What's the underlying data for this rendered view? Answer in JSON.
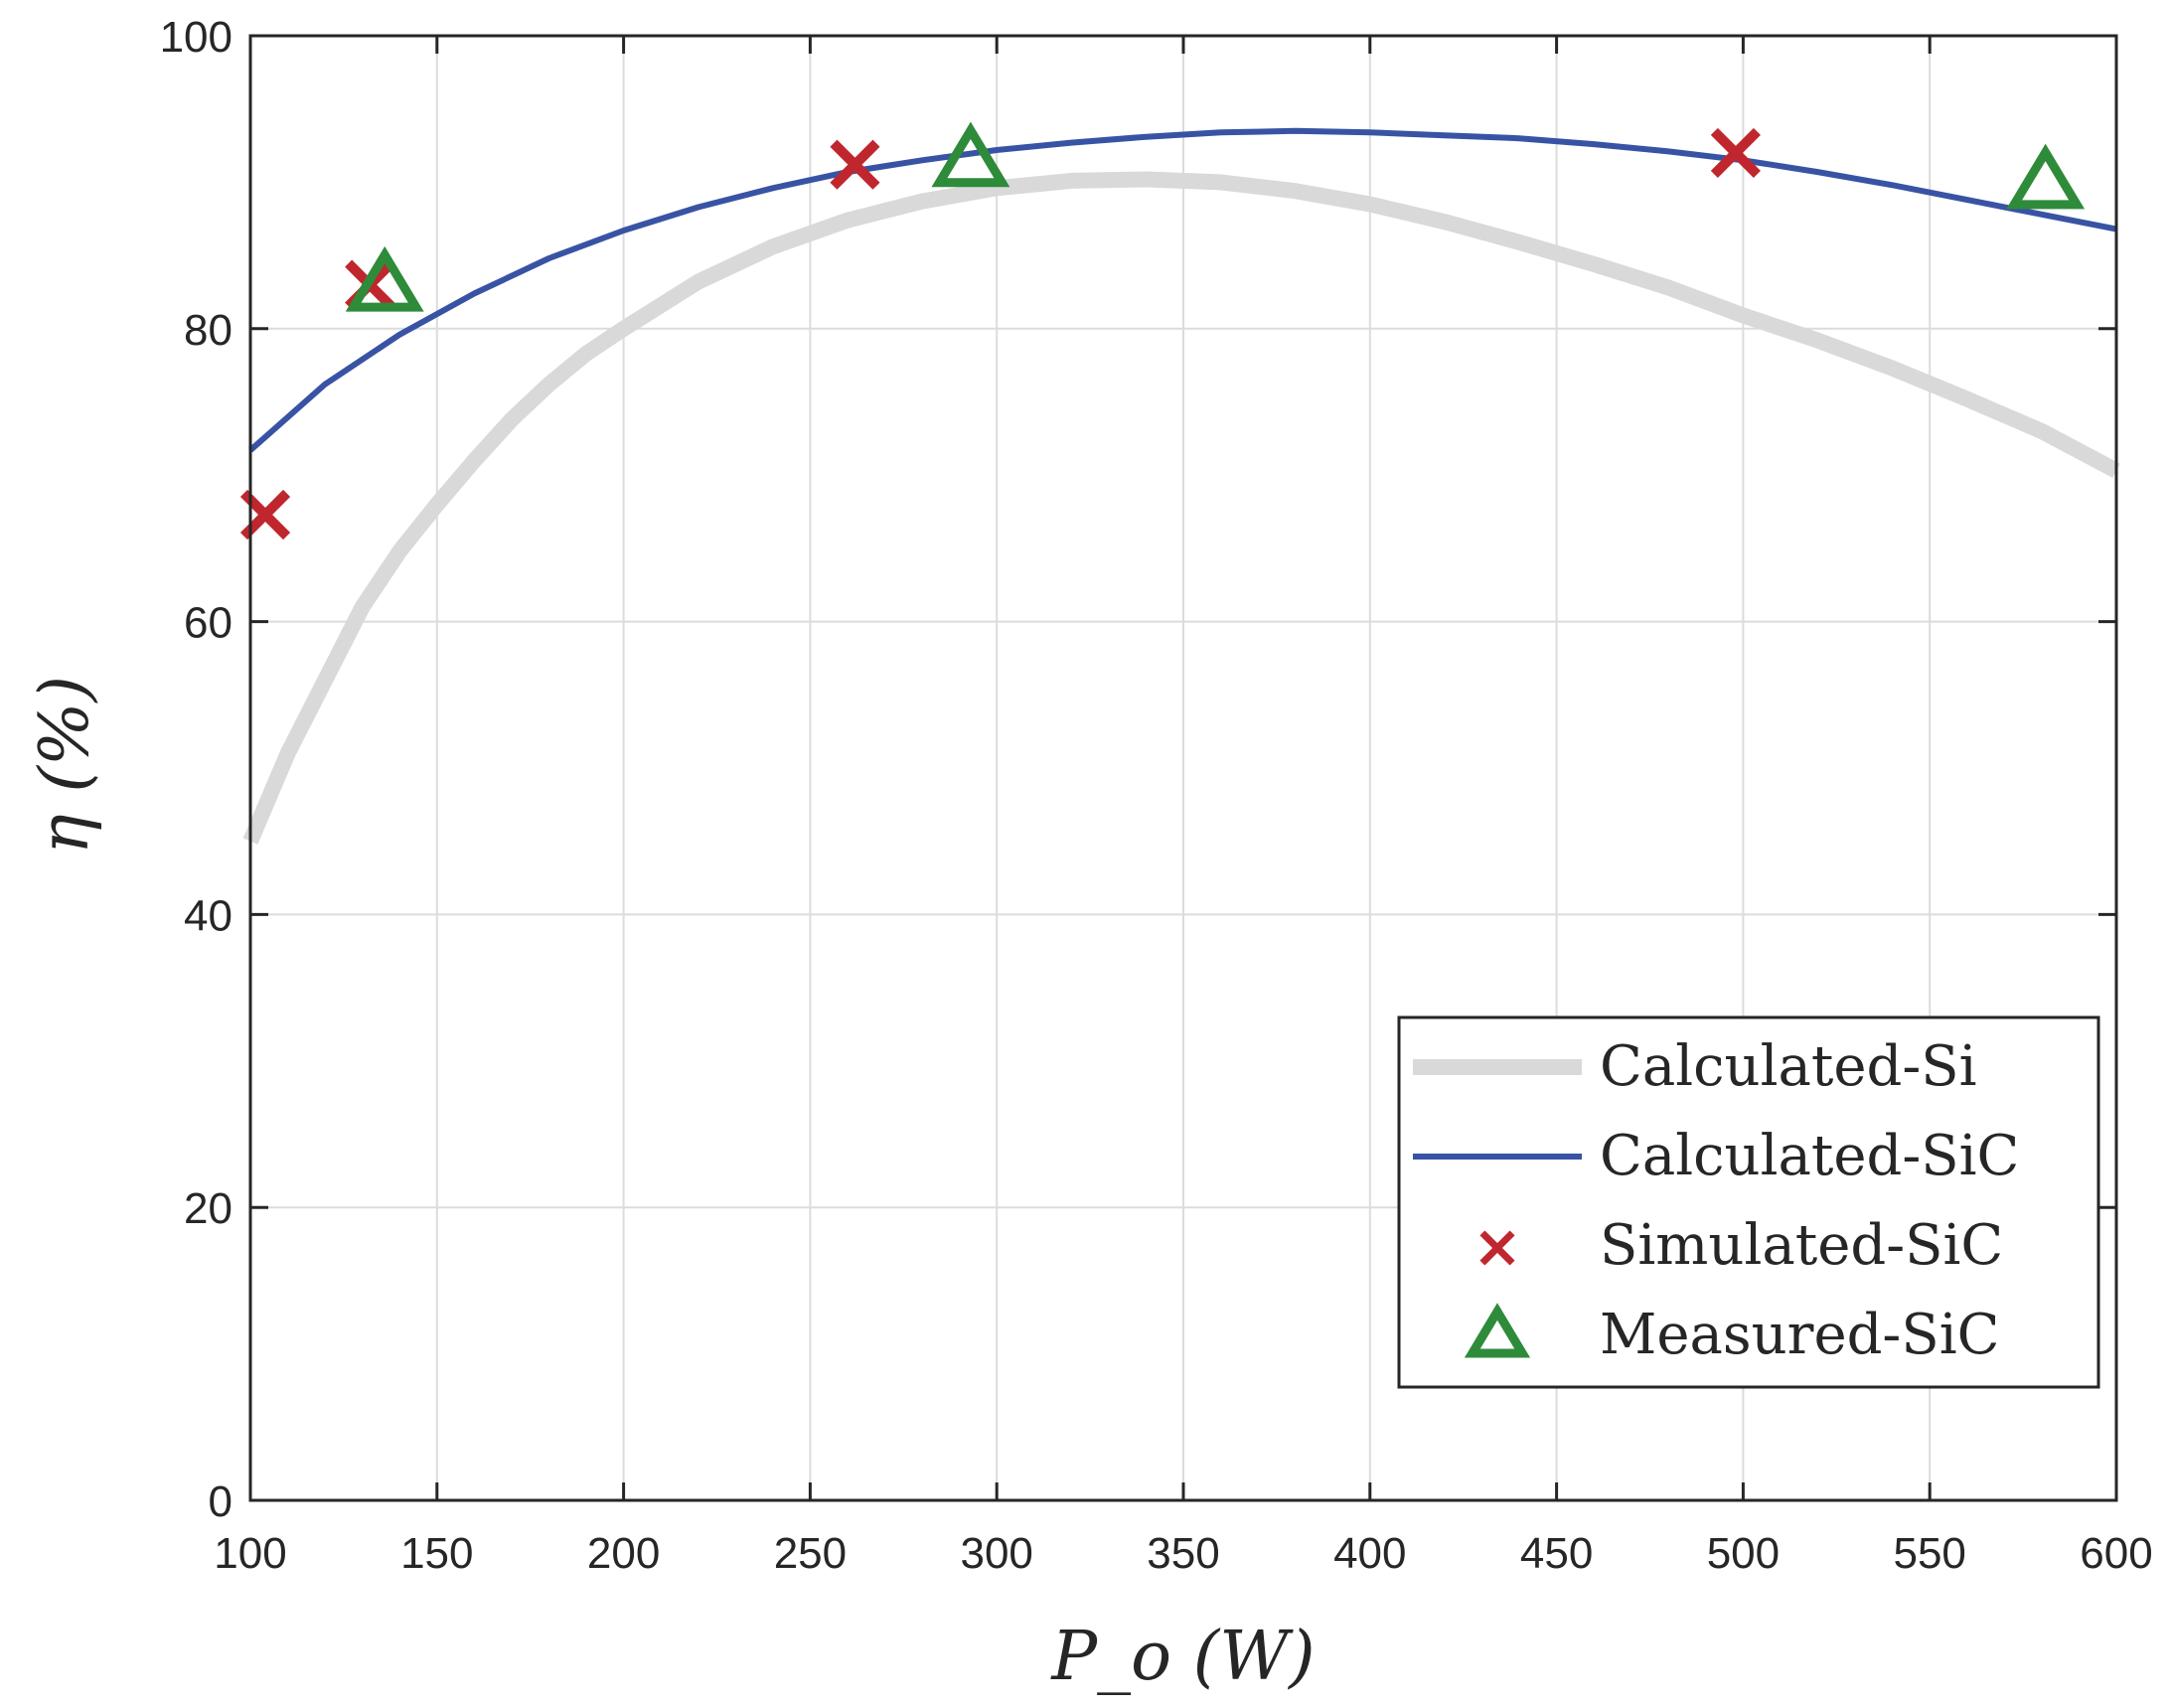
{
  "chart_data": {
    "type": "line",
    "title": "",
    "xlabel": "P_o (W)",
    "ylabel": "η (%)",
    "xlim": [
      100,
      600
    ],
    "ylim": [
      0,
      100
    ],
    "xticks": [
      "100",
      "150",
      "200",
      "250",
      "300",
      "350",
      "400",
      "450",
      "500",
      "550",
      "600"
    ],
    "yticks": [
      "0",
      "20",
      "40",
      "60",
      "80",
      "100"
    ],
    "grid": true,
    "legend_position": "bottom-right",
    "series": [
      {
        "name": "Calculated-Si",
        "kind": "line",
        "color": "#d9d9d9",
        "x": [
          100,
          110,
          120,
          130,
          140,
          150,
          160,
          170,
          180,
          190,
          200,
          220,
          240,
          260,
          280,
          300,
          320,
          340,
          360,
          380,
          400,
          420,
          440,
          460,
          480,
          500,
          520,
          540,
          560,
          580,
          600
        ],
        "y": [
          45,
          51,
          56,
          61,
          64.8,
          68,
          71,
          73.8,
          76.2,
          78.3,
          80,
          83.2,
          85.6,
          87.4,
          88.7,
          89.6,
          90.1,
          90.2,
          90,
          89.4,
          88.5,
          87.3,
          85.9,
          84.4,
          82.8,
          80.9,
          79.2,
          77.3,
          75.2,
          73,
          70.3
        ]
      },
      {
        "name": "Calculated-SiC",
        "kind": "line",
        "color": "#3953a4",
        "x": [
          100,
          120,
          140,
          160,
          180,
          200,
          220,
          240,
          260,
          280,
          300,
          320,
          340,
          360,
          380,
          400,
          420,
          440,
          460,
          480,
          500,
          520,
          540,
          560,
          580,
          600
        ],
        "y": [
          71.7,
          76.2,
          79.6,
          82.4,
          84.8,
          86.7,
          88.3,
          89.6,
          90.7,
          91.5,
          92.2,
          92.7,
          93.1,
          93.4,
          93.5,
          93.4,
          93.2,
          93,
          92.6,
          92.1,
          91.5,
          90.7,
          89.8,
          88.8,
          87.8,
          86.8
        ]
      },
      {
        "name": "Simulated-SiC",
        "kind": "scatter",
        "marker": "x",
        "color": "#c0262d",
        "x": [
          104,
          132,
          262,
          498
        ],
        "y": [
          67.3,
          83,
          91.2,
          92
        ]
      },
      {
        "name": "Measured-SiC",
        "kind": "scatter",
        "marker": "triangle",
        "color": "#2e8b3a",
        "x": [
          136,
          293,
          581
        ],
        "y": [
          83,
          91.5,
          90
        ]
      }
    ]
  }
}
